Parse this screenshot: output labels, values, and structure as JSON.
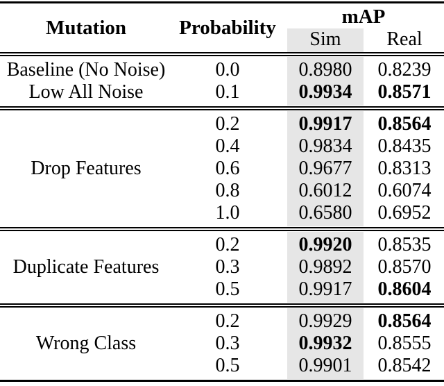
{
  "colors": {
    "sim_band": "#e6e6e6",
    "rule": "#000000",
    "text": "#000000"
  },
  "table": {
    "headers": {
      "mutation": "Mutation",
      "probability": "Probability",
      "map": "mAP",
      "sim": "Sim",
      "real": "Real"
    },
    "sections": [
      {
        "rows": [
          {
            "mutation": "Baseline (No Noise)",
            "probability": "0.0",
            "sim": "0.8980",
            "real": "0.8239",
            "bold": []
          },
          {
            "mutation": "Low All Noise",
            "probability": "0.1",
            "sim": "0.9934",
            "real": "0.8571",
            "bold": [
              "sim",
              "real"
            ]
          }
        ]
      },
      {
        "label": "Drop Features",
        "rows": [
          {
            "probability": "0.2",
            "sim": "0.9917",
            "real": "0.8564",
            "bold": [
              "sim",
              "real"
            ]
          },
          {
            "probability": "0.4",
            "sim": "0.9834",
            "real": "0.8435",
            "bold": []
          },
          {
            "probability": "0.6",
            "sim": "0.9677",
            "real": "0.8313",
            "bold": []
          },
          {
            "probability": "0.8",
            "sim": "0.6012",
            "real": "0.6074",
            "bold": []
          },
          {
            "probability": "1.0",
            "sim": "0.6580",
            "real": "0.6952",
            "bold": []
          }
        ]
      },
      {
        "label": "Duplicate Features",
        "rows": [
          {
            "probability": "0.2",
            "sim": "0.9920",
            "real": "0.8535",
            "bold": [
              "sim"
            ]
          },
          {
            "probability": "0.3",
            "sim": "0.9892",
            "real": "0.8570",
            "bold": []
          },
          {
            "probability": "0.5",
            "sim": "0.9917",
            "real": "0.8604",
            "bold": [
              "real"
            ]
          }
        ]
      },
      {
        "label": "Wrong Class",
        "rows": [
          {
            "probability": "0.2",
            "sim": "0.9929",
            "real": "0.8564",
            "bold": [
              "real"
            ]
          },
          {
            "probability": "0.3",
            "sim": "0.9932",
            "real": "0.8555",
            "bold": [
              "sim"
            ]
          },
          {
            "probability": "0.5",
            "sim": "0.9901",
            "real": "0.8542",
            "bold": []
          }
        ]
      }
    ]
  },
  "chart_data": {
    "type": "table",
    "title": "mAP by mutation type and probability (Sim vs Real)",
    "columns": [
      "Mutation",
      "Probability",
      "mAP Sim",
      "mAP Real"
    ],
    "rows": [
      [
        "Baseline (No Noise)",
        0.0,
        0.898,
        0.8239
      ],
      [
        "Low All Noise",
        0.1,
        0.9934,
        0.8571
      ],
      [
        "Drop Features",
        0.2,
        0.9917,
        0.8564
      ],
      [
        "Drop Features",
        0.4,
        0.9834,
        0.8435
      ],
      [
        "Drop Features",
        0.6,
        0.9677,
        0.8313
      ],
      [
        "Drop Features",
        0.8,
        0.6012,
        0.6074
      ],
      [
        "Drop Features",
        1.0,
        0.658,
        0.6952
      ],
      [
        "Duplicate Features",
        0.2,
        0.992,
        0.8535
      ],
      [
        "Duplicate Features",
        0.3,
        0.9892,
        0.857
      ],
      [
        "Duplicate Features",
        0.5,
        0.9917,
        0.8604
      ],
      [
        "Wrong Class",
        0.2,
        0.9929,
        0.8564
      ],
      [
        "Wrong Class",
        0.3,
        0.9932,
        0.8555
      ],
      [
        "Wrong Class",
        0.5,
        0.9901,
        0.8542
      ]
    ]
  }
}
